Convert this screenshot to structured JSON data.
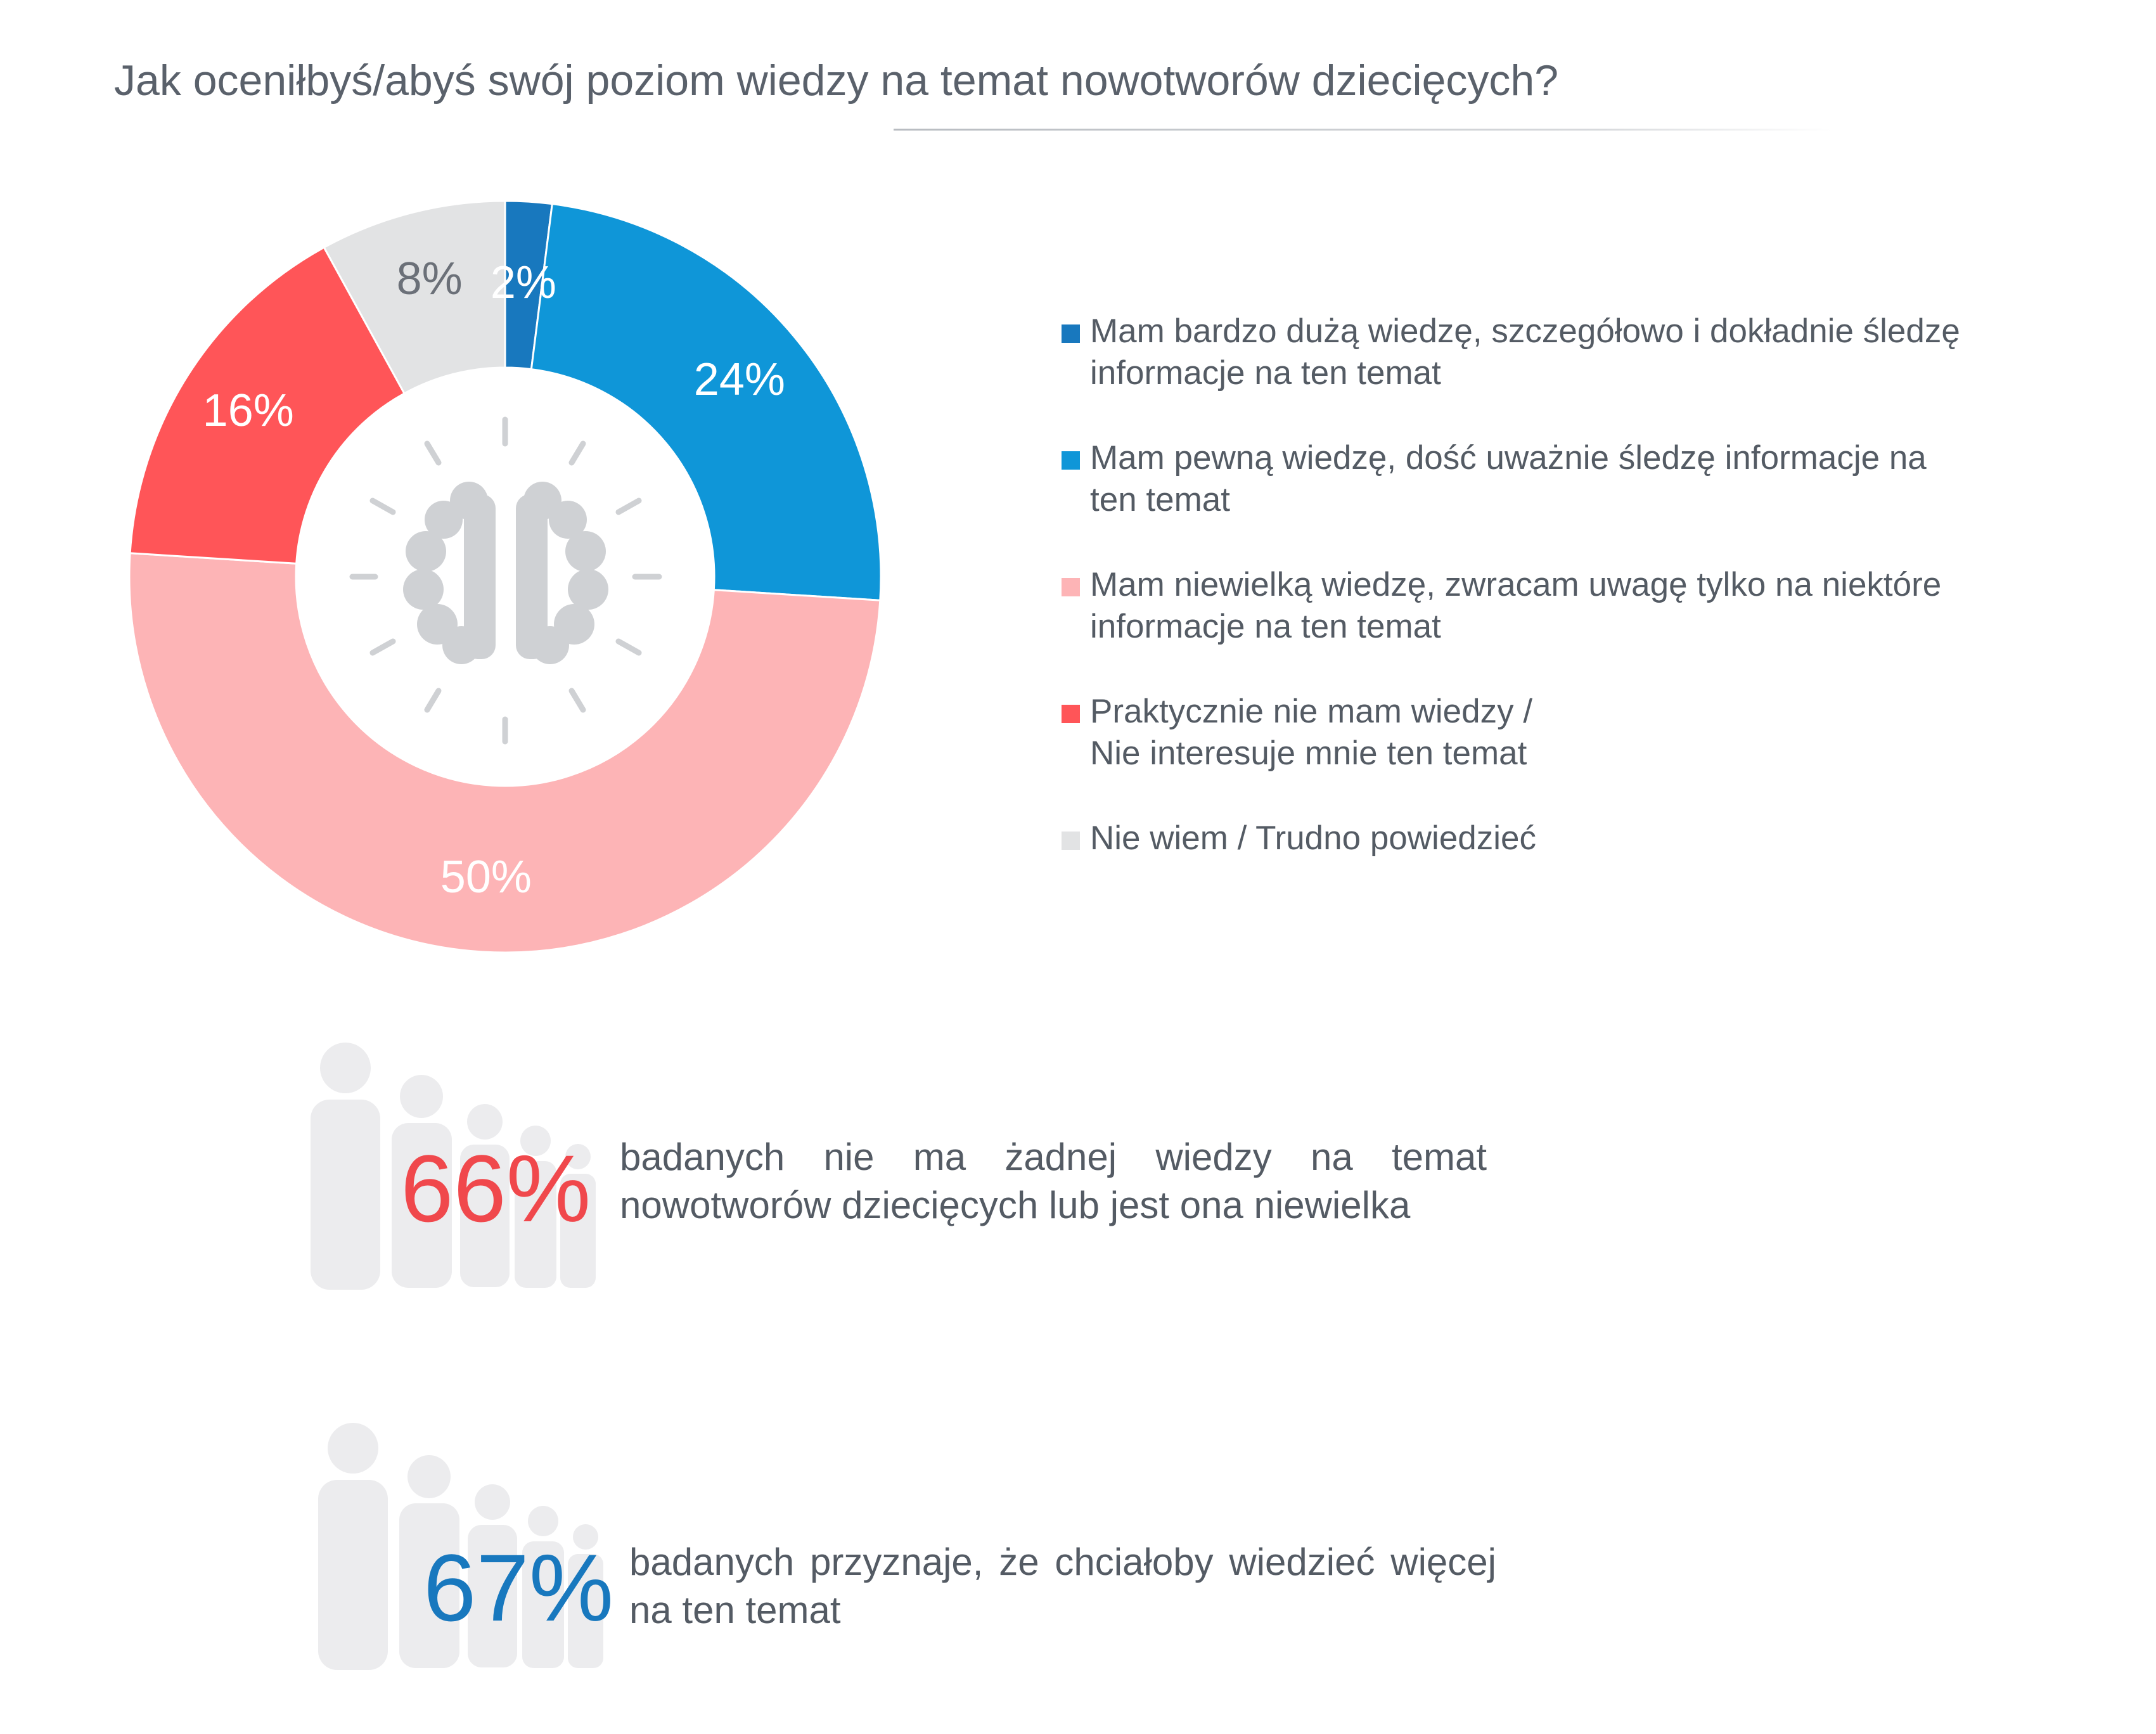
{
  "title": "Jak oceniłbyś/abyś swój poziom wiedzy na temat nowotworów dziecięcych?",
  "chart_data": {
    "type": "pie",
    "categories": [
      "Mam bardzo dużą wiedzę, szczegółowo i dokładnie śledzę informacje na ten temat",
      "Mam pewną wiedzę, dość uważnie śledzę informacje na ten temat",
      "Mam niewielką wiedzę, zwracam uwagę tylko na niektóre informacje na ten temat",
      "Praktycznie nie mam wiedzy / Nie interesuje mnie ten temat",
      "Nie wiem / Trudno powiedzieć"
    ],
    "values": [
      2,
      24,
      50,
      16,
      8
    ],
    "data_labels": [
      "2%",
      "24%",
      "50%",
      "16%",
      "8%"
    ],
    "colors": [
      "#1878be",
      "#0f96d8",
      "#fdb4b6",
      "#ff5558",
      "#e2e3e4"
    ],
    "label_colors": [
      "#ffffff",
      "#ffffff",
      "#ffffff",
      "#ffffff",
      "#6b7078"
    ],
    "legend_placement": "right",
    "center_icon": "brain-icon"
  },
  "legend": [
    {
      "label": "Mam bardzo dużą wiedzę, szczegółowo i dokładnie śledzę\ninformacje na ten temat",
      "color": "#1878be"
    },
    {
      "label": "Mam pewną wiedzę, dość uważnie śledzę informacje na\nten temat",
      "color": "#0f96d8"
    },
    {
      "label": "Mam niewielką wiedzę, zwracam uwagę tylko na niektóre\ninformacje na ten temat",
      "color": "#fdb4b6"
    },
    {
      "label": "Praktycznie nie mam wiedzy /\nNie interesuje mnie ten temat",
      "color": "#ff5558"
    },
    {
      "label": "Nie wiem / Trudno powiedzieć",
      "color": "#e2e3e4"
    }
  ],
  "stats": [
    {
      "value": "66%",
      "color": "#f0484c",
      "text": "badanych nie ma żadnej wiedzy na temat nowotworów dziecięcych lub jest ona niewielka",
      "icon": "people-icon"
    },
    {
      "value": "67%",
      "color": "#1878be",
      "text": "badanych przyznaje, że chciałoby wiedzieć więcej na ten temat",
      "icon": "people-icon"
    }
  ]
}
